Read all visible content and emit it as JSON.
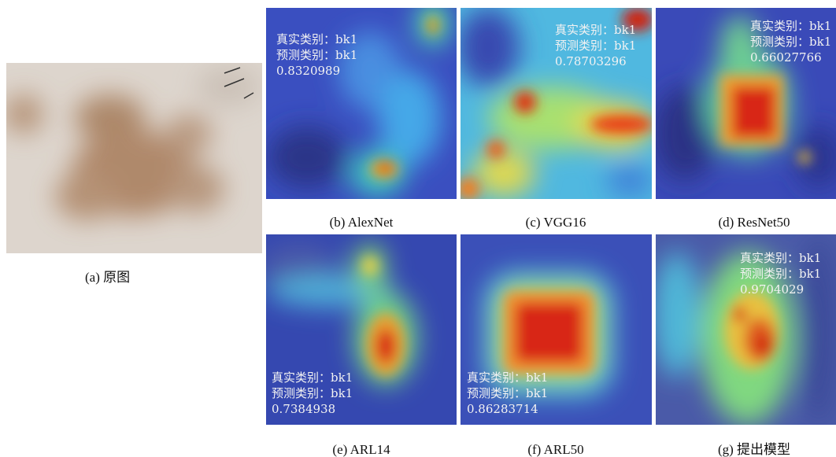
{
  "figure": {
    "original": {
      "caption": "(a) 原图"
    },
    "panels": [
      {
        "caption": "(b) AlexNet",
        "true_label": "真实类别：bk1",
        "predicted_label": "预测类别：bk1",
        "score": "0.8320989"
      },
      {
        "caption": "(c) VGG16",
        "true_label": "真实类别：bk1",
        "predicted_label": "预测类别：bk1",
        "score": "0.78703296"
      },
      {
        "caption": "(d) ResNet50",
        "true_label": "真实类别：bk1",
        "predicted_label": "预测类别：bk1",
        "score": "0.66027766"
      },
      {
        "caption": "(e) ARL14",
        "true_label": "真实类别：bk1",
        "predicted_label": "预测类别：bk1",
        "score": "0.7384938"
      },
      {
        "caption": "(f) ARL50",
        "true_label": "真实类别：bk1",
        "predicted_label": "预测类别：bk1",
        "score": "0.86283714"
      },
      {
        "caption": "(g) 提出模型",
        "true_label": "真实类别：bk1",
        "predicted_label": "预测类别：bk1",
        "score": "0.9704029"
      }
    ]
  }
}
